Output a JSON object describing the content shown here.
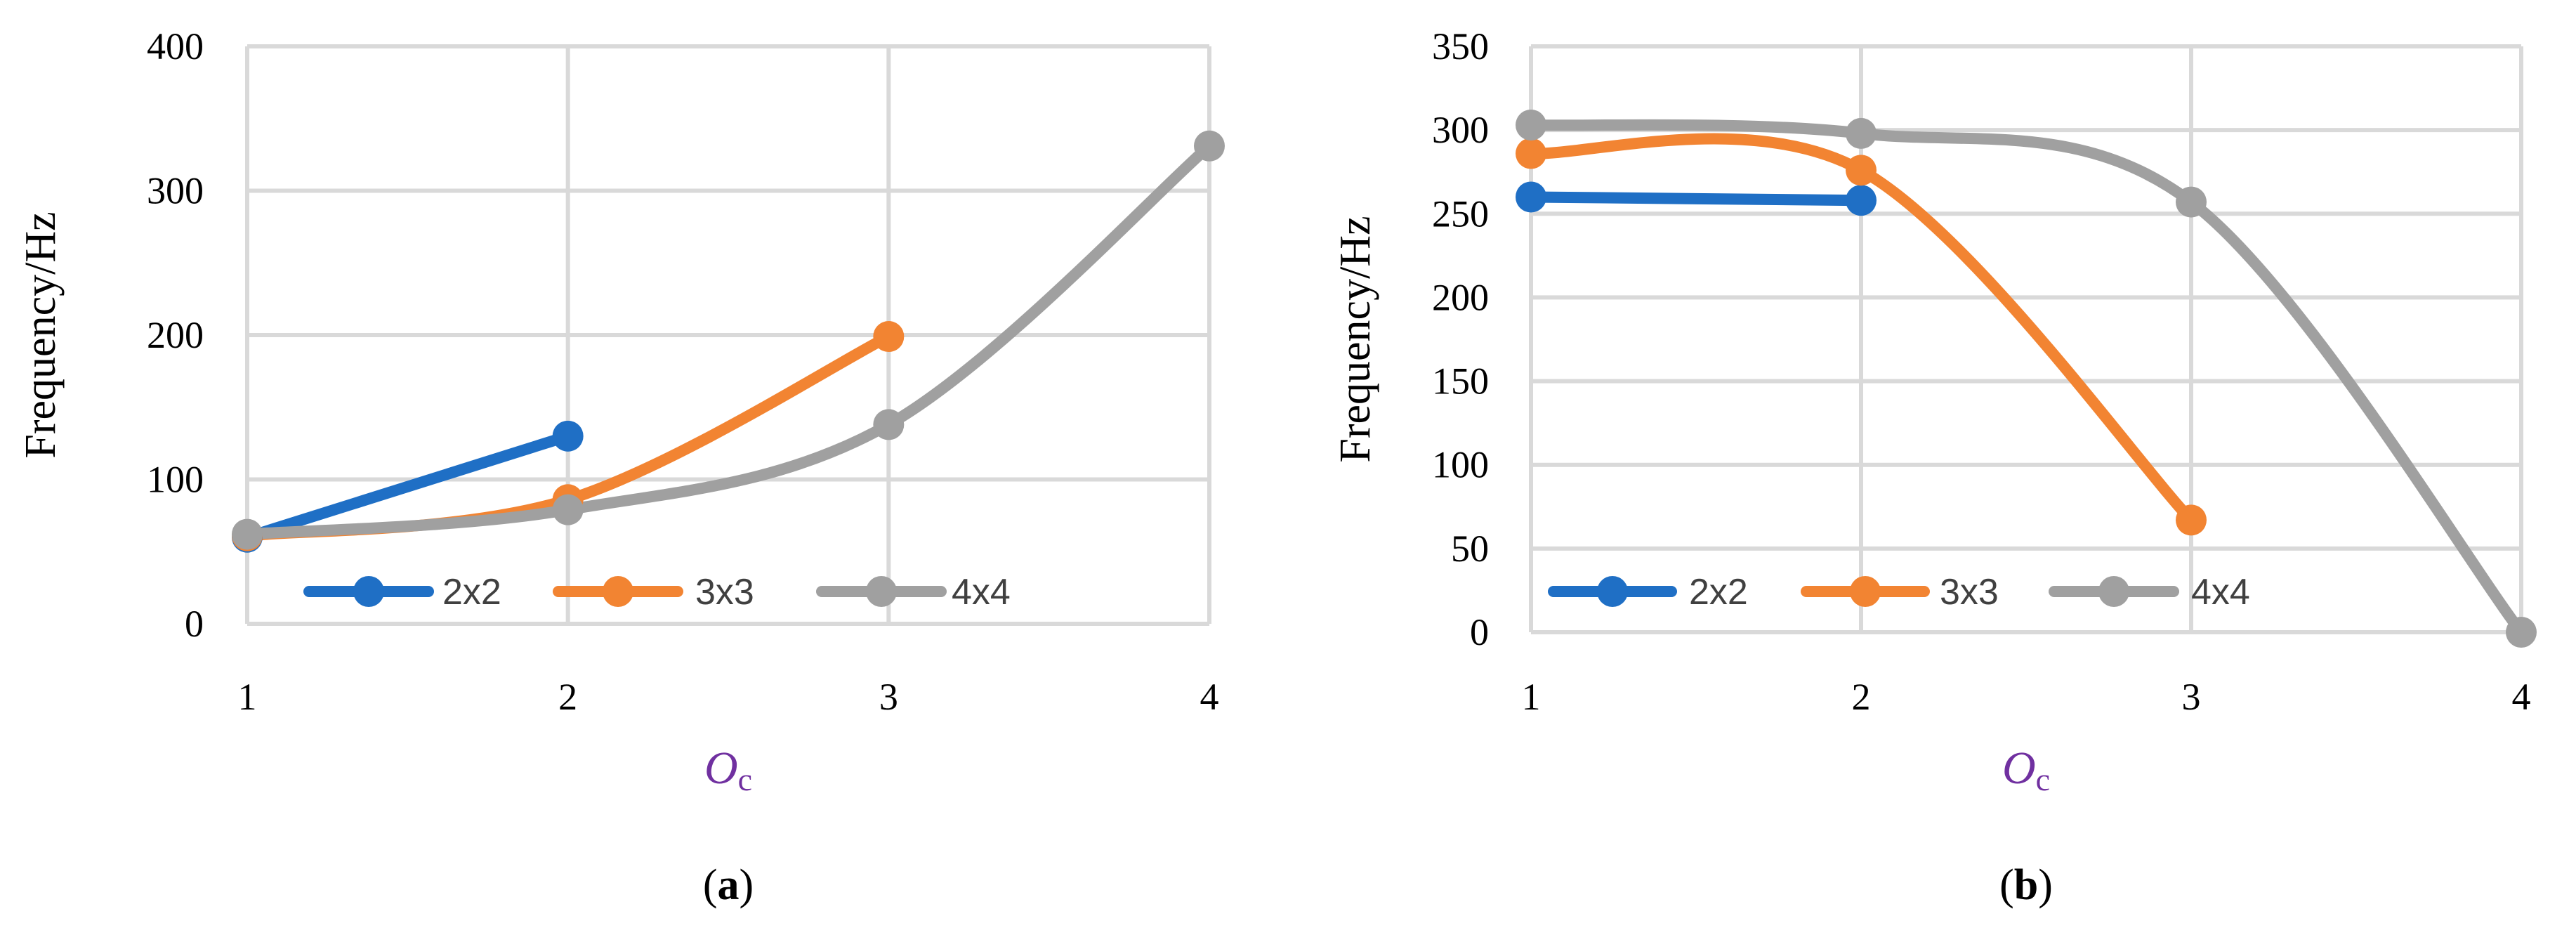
{
  "chart_data": [
    {
      "type": "line",
      "panel_label": "a",
      "xlabel": "O",
      "xlabel_sub": "c",
      "ylabel": "Frequency/Hz",
      "x_ticks": [
        "1",
        "2",
        "3",
        "4"
      ],
      "y_ticks": [
        "0",
        "100",
        "200",
        "300",
        "400"
      ],
      "xlim": [
        1,
        4
      ],
      "ylim": [
        0,
        400
      ],
      "grid": true,
      "legend_position": "bottom-left",
      "series": [
        {
          "name": "2x2",
          "color": "#1f6fc5",
          "x": [
            1,
            2
          ],
          "y": [
            60,
            130
          ],
          "smooth": false
        },
        {
          "name": "3x3",
          "color": "#f28432",
          "x": [
            1,
            2,
            3
          ],
          "y": [
            61,
            86,
            199
          ],
          "smooth": true
        },
        {
          "name": "4x4",
          "color": "#a0a0a0",
          "x": [
            1,
            2,
            3,
            4
          ],
          "y": [
            62,
            79,
            138,
            331
          ],
          "smooth": true
        }
      ]
    },
    {
      "type": "line",
      "panel_label": "b",
      "xlabel": "O",
      "xlabel_sub": "c",
      "ylabel": "Frequency/Hz",
      "x_ticks": [
        "1",
        "2",
        "3",
        "4"
      ],
      "y_ticks": [
        "0",
        "50",
        "100",
        "150",
        "200",
        "250",
        "300",
        "350"
      ],
      "xlim": [
        1,
        4
      ],
      "ylim": [
        0,
        350
      ],
      "grid": true,
      "legend_position": "bottom-left",
      "series": [
        {
          "name": "2x2",
          "color": "#1f6fc5",
          "x": [
            1,
            2
          ],
          "y": [
            260,
            258
          ],
          "smooth": false
        },
        {
          "name": "3x3",
          "color": "#f28432",
          "x": [
            1,
            2,
            3
          ],
          "y": [
            286,
            276,
            67
          ],
          "smooth": true
        },
        {
          "name": "4x4",
          "color": "#a0a0a0",
          "x": [
            1,
            2,
            3,
            4
          ],
          "y": [
            303,
            298,
            257,
            0
          ],
          "smooth": true
        }
      ]
    }
  ]
}
